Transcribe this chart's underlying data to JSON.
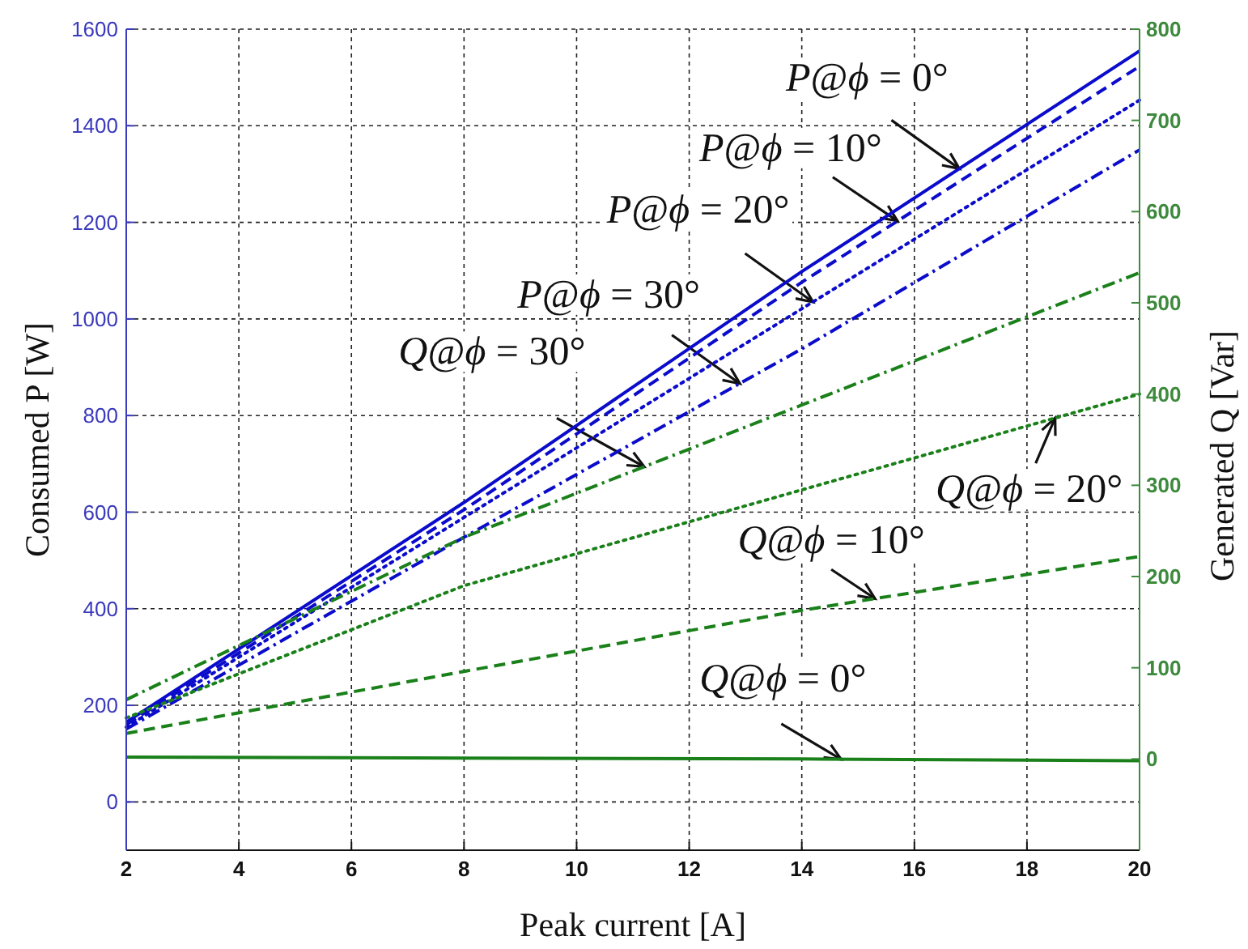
{
  "chart_data": {
    "type": "line",
    "xlabel": "Peak current [A]",
    "ylabel": "Consumed P [W]",
    "y2label": "Generated Q [Var]",
    "x": [
      2,
      8,
      14,
      20
    ],
    "series": [
      {
        "color": "#0b0bcc",
        "line_style": "solid",
        "values": [
          165,
          620,
          1098,
          1555
        ]
      },
      {
        "color": "#0b0bcc",
        "line_style": "dashed",
        "values": [
          160,
          605,
          1076,
          1523
        ]
      },
      {
        "color": "#0b0bcc",
        "line_style": "dotted",
        "values": [
          155,
          589,
          1021,
          1453
        ]
      },
      {
        "color": "#0b0bcc",
        "line_style": "dashdot",
        "values": [
          151,
          548,
          938,
          1350
        ]
      },
      {
        "color": "#1a801a",
        "line_style": "dashdot",
        "axis": "y2",
        "values": [
          65,
          243,
          388,
          533
        ]
      },
      {
        "color": "#1a801a",
        "line_style": "dotted",
        "axis": "y2",
        "values": [
          45,
          190,
          295,
          400
        ]
      },
      {
        "color": "#1a801a",
        "line_style": "dashed",
        "axis": "y2",
        "values": [
          28,
          96,
          163,
          222
        ]
      },
      {
        "color": "#1a801a",
        "line_style": "solid",
        "axis": "y2",
        "values": [
          2,
          1,
          0,
          -2
        ]
      }
    ],
    "xlim": [
      2,
      20
    ],
    "xticks": [
      2,
      4,
      6,
      8,
      10,
      12,
      14,
      16,
      18,
      20
    ],
    "ylim": [
      -100,
      1600
    ],
    "yticks": [
      0,
      200,
      400,
      600,
      800,
      1000,
      1200,
      1400,
      1600
    ],
    "y2lim": [
      -100,
      800
    ],
    "y2ticks": [
      0,
      100,
      200,
      300,
      400,
      500,
      600,
      700,
      800
    ],
    "grid": true,
    "annotations": [
      {
        "text": "P@ϕ = 0°",
        "x": 16.8,
        "y": 1311
      },
      {
        "text": "P@ϕ = 10°",
        "x": 15.7,
        "y": 1203
      },
      {
        "text": "P@ϕ = 20°",
        "x": 14.2,
        "y": 1035
      },
      {
        "text": "P@ϕ = 30°",
        "x": 12.9,
        "y": 866
      },
      {
        "text": "Q@ϕ = 30°",
        "x": 11.2,
        "y": 694
      },
      {
        "text": "Q@ϕ = 20°",
        "x": 18.5,
        "y": 795
      },
      {
        "text": "Q@ϕ = 10°",
        "x": 15.3,
        "y": 421
      },
      {
        "text": "Q@ϕ = 0°",
        "x": 14.7,
        "y": 88
      }
    ]
  }
}
